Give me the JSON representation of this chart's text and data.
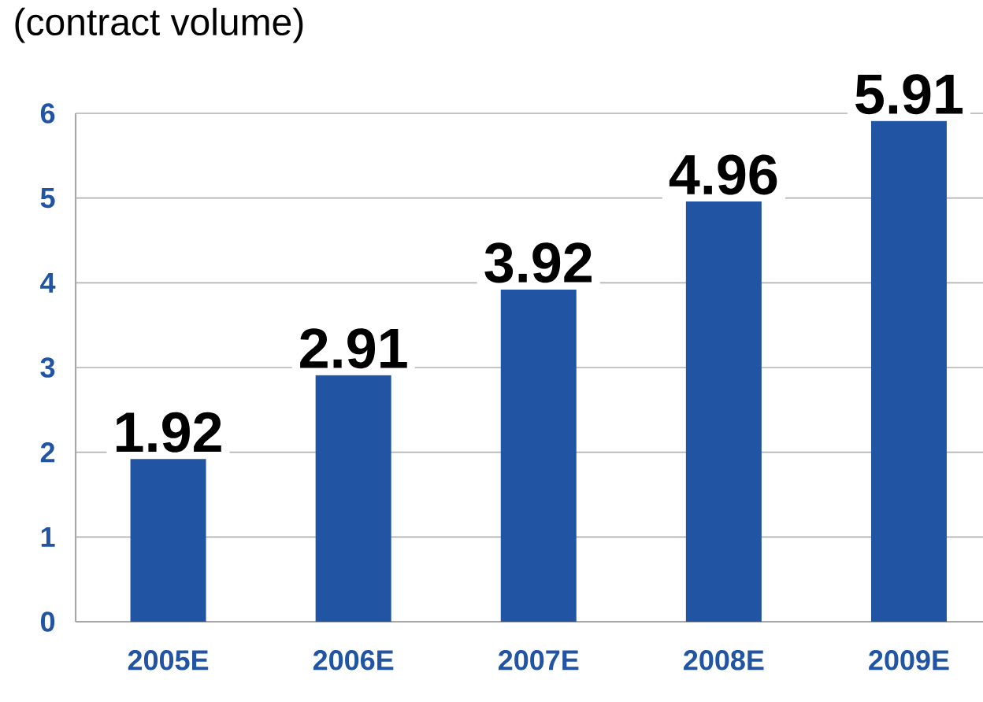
{
  "chart_data": {
    "type": "bar",
    "title": "(contract volume)",
    "categories": [
      "2005E",
      "2006E",
      "2007E",
      "2008E",
      "2009E"
    ],
    "values": [
      1.92,
      2.91,
      3.92,
      4.96,
      5.91
    ],
    "color": "#2155a3",
    "ylim": [
      0,
      6
    ],
    "yticks": [
      0,
      1,
      2,
      3,
      4,
      5,
      6
    ],
    "grid": "y",
    "data_labels": true
  }
}
